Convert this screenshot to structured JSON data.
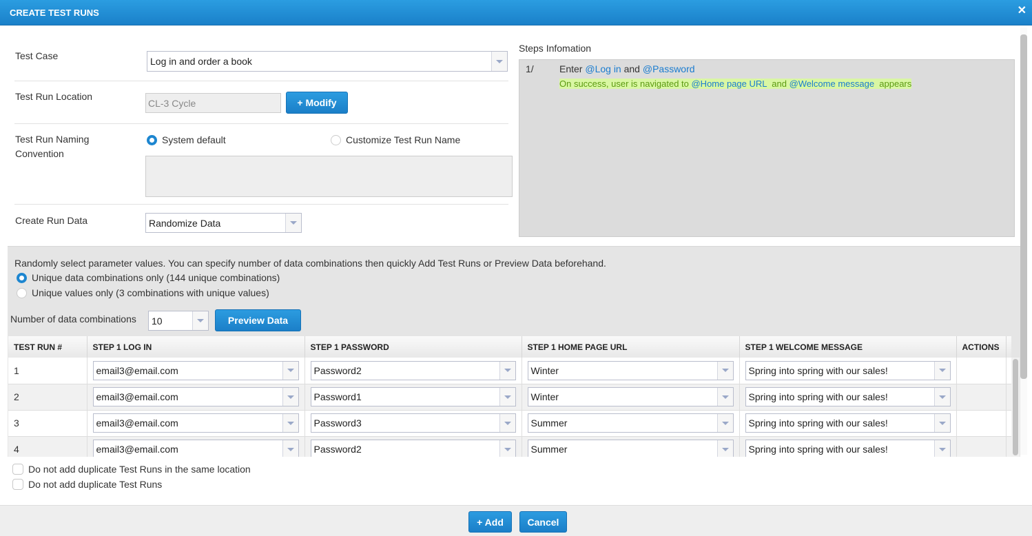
{
  "dialog": {
    "title": "CREATE TEST RUNS",
    "close_icon": "close-icon"
  },
  "form": {
    "test_case": {
      "label": "Test Case",
      "value": "Log in and order a book"
    },
    "location": {
      "label": "Test Run Location",
      "value": "CL-3 Cycle",
      "modify_label": "+ Modify"
    },
    "naming": {
      "label_line1": "Test Run Naming",
      "label_line2": "Convention",
      "option_default": "System default",
      "option_custom": "Customize Test Run Name",
      "selected": "System default"
    },
    "run_data": {
      "label": "Create Run Data",
      "value": "Randomize Data"
    }
  },
  "steps": {
    "title": "Steps Infomation",
    "items": [
      {
        "num": "1/",
        "action_prefix": "Enter ",
        "param1": "@Log in",
        "action_mid": " and ",
        "param2": "@Password",
        "expected_prefix": "On success, user is navigated to ",
        "exp_param1": "@Home page URL",
        "expected_mid": "  and ",
        "exp_param2": "@Welcome message",
        "expected_suffix": "  appears"
      }
    ]
  },
  "random": {
    "description": "Randomly select parameter values. You can specify number of data combinations then quickly Add Test Runs or Preview Data beforehand.",
    "option_unique_combos": "Unique data combinations only (144 unique combinations)",
    "option_unique_values": "Unique values only (3 combinations with unique values)",
    "selected": "unique_combos",
    "count_label": "Number of data combinations",
    "count_value": "10",
    "preview_label": "Preview Data"
  },
  "table": {
    "headers": [
      "TEST RUN #",
      "STEP 1 LOG IN",
      "STEP 1 PASSWORD",
      "STEP 1 HOME PAGE URL",
      "STEP 1 WELCOME MESSAGE",
      "ACTIONS"
    ],
    "rows": [
      [
        "1",
        "email3@email.com",
        "Password2",
        "Winter",
        "Spring into spring with our sales!"
      ],
      [
        "2",
        "email3@email.com",
        "Password1",
        "Winter",
        "Spring into spring with our sales!"
      ],
      [
        "3",
        "email3@email.com",
        "Password3",
        "Summer",
        "Spring into spring with our sales!"
      ],
      [
        "4",
        "email3@email.com",
        "Password2",
        "Summer",
        "Spring into spring with our sales!"
      ]
    ]
  },
  "options": {
    "no_dup_location": "Do not add duplicate Test Runs in the same location",
    "no_dup": "Do not add duplicate Test Runs"
  },
  "footer": {
    "add_label": "+ Add",
    "cancel_label": "Cancel"
  },
  "colors": {
    "primary": "#1d86d0",
    "highlight": "#d9f7a3"
  }
}
